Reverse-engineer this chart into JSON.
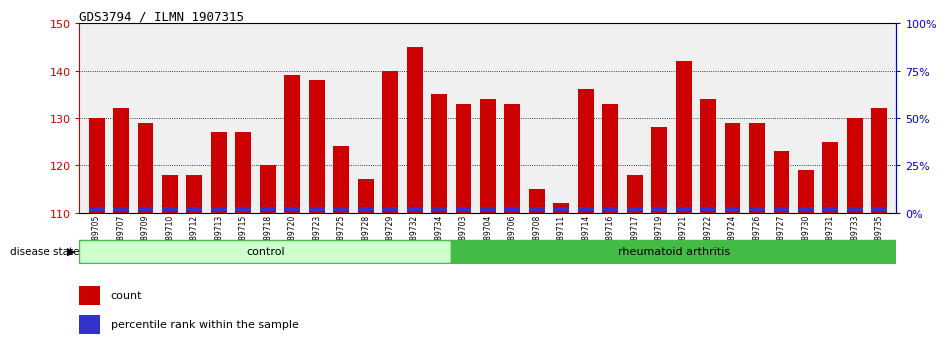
{
  "title": "GDS3794 / ILMN_1907315",
  "samples": [
    "GSM389705",
    "GSM389707",
    "GSM389709",
    "GSM389710",
    "GSM389712",
    "GSM389713",
    "GSM389715",
    "GSM389718",
    "GSM389720",
    "GSM389723",
    "GSM389725",
    "GSM389728",
    "GSM389729",
    "GSM389732",
    "GSM389734",
    "GSM389703",
    "GSM389704",
    "GSM389706",
    "GSM389708",
    "GSM389711",
    "GSM389714",
    "GSM389716",
    "GSM389717",
    "GSM389719",
    "GSM389721",
    "GSM389722",
    "GSM389724",
    "GSM389726",
    "GSM389727",
    "GSM389730",
    "GSM389731",
    "GSM389733",
    "GSM389735"
  ],
  "counts": [
    130,
    132,
    129,
    118,
    118,
    127,
    127,
    120,
    139,
    138,
    124,
    117,
    140,
    145,
    135,
    133,
    134,
    133,
    115,
    112,
    136,
    133,
    118,
    128,
    142,
    134,
    129,
    129,
    123,
    119,
    125,
    130,
    132
  ],
  "percentile_ranks": [
    4,
    5,
    3,
    3,
    3,
    3,
    3,
    4,
    7,
    6,
    3,
    3,
    5,
    8,
    5,
    4,
    4,
    4,
    3,
    2,
    5,
    4,
    3,
    4,
    6,
    4,
    4,
    4,
    3,
    3,
    3,
    4,
    4
  ],
  "n_control": 15,
  "n_ra": 18,
  "ymin": 110,
  "ymax": 150,
  "yticks_left": [
    110,
    120,
    130,
    140,
    150
  ],
  "yticks_right": [
    0,
    25,
    50,
    75,
    100
  ],
  "bar_width": 0.65,
  "bar_color_red": "#cc0000",
  "bar_color_blue": "#3333cc",
  "control_color_light": "#ccffcc",
  "control_color_edge": "#44bb44",
  "ra_color": "#44bb44",
  "ra_color_edge": "#44bb44",
  "bg_color": "#f0f0f0",
  "left_axis_color": "#cc0000",
  "right_axis_color": "#0000cc"
}
